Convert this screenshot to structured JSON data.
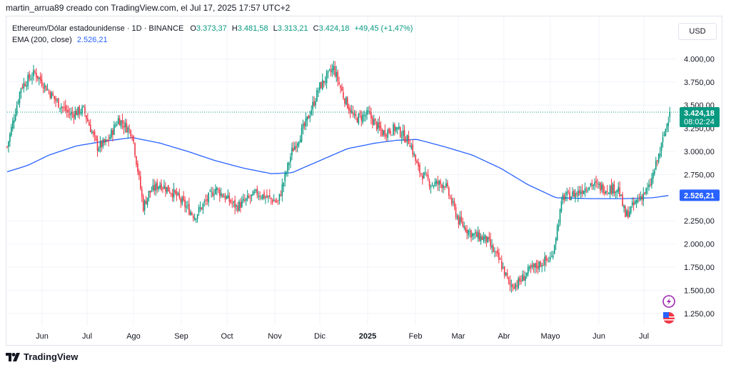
{
  "caption": "martin_arrua89 creado con TradingView.com, el Jul 17, 2025 17:57 UTC+2",
  "legend": {
    "symbol": "Ethereum/Dólar estadounidense · 1D · BINANCE",
    "o_label": "O",
    "o": "3.373,37",
    "h_label": "H",
    "h": "3.481,58",
    "l_label": "L",
    "l": "3.313,21",
    "c_label": "C",
    "c": "3.424,18",
    "change": "+49,45 (+1,47%)",
    "ema_label": "EMA (200, close)",
    "ema_value": "2.526,21"
  },
  "currency_button": "USD",
  "price_tag": {
    "price": "3.424,18",
    "countdown": "08:02:24",
    "color": "#089981"
  },
  "ema_tag": {
    "value": "2.526,21",
    "color": "#2962ff"
  },
  "footer_brand": "TradingView",
  "colors": {
    "up": "#089981",
    "down": "#f23645",
    "ema": "#2962ff",
    "grid": "#f0f3fa"
  },
  "icons": [
    "lightning-icon",
    "us-flag-icon"
  ],
  "chart_data": {
    "type": "candlestick",
    "title": "Ethereum/Dólar estadounidense · 1D · BINANCE",
    "xlabel": "",
    "ylabel": "",
    "ylim": [
      1000,
      4400
    ],
    "y_ticks": [
      {
        "v": 4000,
        "label": "4.000,00"
      },
      {
        "v": 3750,
        "label": "3.750,00"
      },
      {
        "v": 3500,
        "label": "3.500,00"
      },
      {
        "v": 3250,
        "label": "3.250,00"
      },
      {
        "v": 3000,
        "label": "3.000,00"
      },
      {
        "v": 2750,
        "label": "2.750,00"
      },
      {
        "v": 2250,
        "label": "2.250,00"
      },
      {
        "v": 2000,
        "label": "2.000,00"
      },
      {
        "v": 1750,
        "label": "1.750,00"
      },
      {
        "v": 1500,
        "label": "1.500,00"
      },
      {
        "v": 1250,
        "label": "1.250,00"
      }
    ],
    "x_ticks": [
      {
        "label": "Jun",
        "bold": false
      },
      {
        "label": "Jul",
        "bold": false
      },
      {
        "label": "Ago",
        "bold": false
      },
      {
        "label": "Sep",
        "bold": false
      },
      {
        "label": "Oct",
        "bold": false
      },
      {
        "label": "Nov",
        "bold": false
      },
      {
        "label": "Dic",
        "bold": false
      },
      {
        "label": "2025",
        "bold": true
      },
      {
        "label": "Feb",
        "bold": false
      },
      {
        "label": "Mar",
        "bold": false
      },
      {
        "label": "Abr",
        "bold": false
      },
      {
        "label": "Mayo",
        "bold": false
      },
      {
        "label": "Jun",
        "bold": false
      },
      {
        "label": "Jul",
        "bold": false
      }
    ],
    "close_anchors": [
      {
        "d": 0,
        "p": 3050
      },
      {
        "d": 10,
        "p": 3700
      },
      {
        "d": 20,
        "p": 3850
      },
      {
        "d": 35,
        "p": 3550
      },
      {
        "d": 45,
        "p": 3400
      },
      {
        "d": 55,
        "p": 3450
      },
      {
        "d": 65,
        "p": 3050
      },
      {
        "d": 72,
        "p": 3100
      },
      {
        "d": 80,
        "p": 3350
      },
      {
        "d": 90,
        "p": 3200
      },
      {
        "d": 98,
        "p": 2400
      },
      {
        "d": 102,
        "p": 2550
      },
      {
        "d": 110,
        "p": 2650
      },
      {
        "d": 120,
        "p": 2550
      },
      {
        "d": 135,
        "p": 2300
      },
      {
        "d": 150,
        "p": 2600
      },
      {
        "d": 165,
        "p": 2400
      },
      {
        "d": 180,
        "p": 2550
      },
      {
        "d": 195,
        "p": 2450
      },
      {
        "d": 205,
        "p": 3000
      },
      {
        "d": 215,
        "p": 3300
      },
      {
        "d": 225,
        "p": 3700
      },
      {
        "d": 235,
        "p": 3900
      },
      {
        "d": 242,
        "p": 3600
      },
      {
        "d": 250,
        "p": 3350
      },
      {
        "d": 260,
        "p": 3400
      },
      {
        "d": 270,
        "p": 3200
      },
      {
        "d": 280,
        "p": 3250
      },
      {
        "d": 290,
        "p": 3100
      },
      {
        "d": 296,
        "p": 2800
      },
      {
        "d": 305,
        "p": 2650
      },
      {
        "d": 315,
        "p": 2650
      },
      {
        "d": 325,
        "p": 2250
      },
      {
        "d": 335,
        "p": 2100
      },
      {
        "d": 345,
        "p": 2050
      },
      {
        "d": 355,
        "p": 1800
      },
      {
        "d": 362,
        "p": 1550
      },
      {
        "d": 368,
        "p": 1580
      },
      {
        "d": 375,
        "p": 1700
      },
      {
        "d": 385,
        "p": 1800
      },
      {
        "d": 392,
        "p": 1850
      },
      {
        "d": 400,
        "p": 2500
      },
      {
        "d": 410,
        "p": 2550
      },
      {
        "d": 420,
        "p": 2650
      },
      {
        "d": 430,
        "p": 2600
      },
      {
        "d": 440,
        "p": 2600
      },
      {
        "d": 445,
        "p": 2300
      },
      {
        "d": 455,
        "p": 2500
      },
      {
        "d": 462,
        "p": 2600
      },
      {
        "d": 470,
        "p": 3000
      },
      {
        "d": 477,
        "p": 3424
      }
    ],
    "ema200_anchors": [
      {
        "d": 0,
        "p": 2780
      },
      {
        "d": 15,
        "p": 2850
      },
      {
        "d": 30,
        "p": 2960
      },
      {
        "d": 50,
        "p": 3060
      },
      {
        "d": 70,
        "p": 3110
      },
      {
        "d": 90,
        "p": 3150
      },
      {
        "d": 110,
        "p": 3090
      },
      {
        "d": 130,
        "p": 3000
      },
      {
        "d": 150,
        "p": 2900
      },
      {
        "d": 170,
        "p": 2820
      },
      {
        "d": 190,
        "p": 2760
      },
      {
        "d": 205,
        "p": 2770
      },
      {
        "d": 225,
        "p": 2900
      },
      {
        "d": 245,
        "p": 3030
      },
      {
        "d": 265,
        "p": 3090
      },
      {
        "d": 280,
        "p": 3120
      },
      {
        "d": 295,
        "p": 3130
      },
      {
        "d": 315,
        "p": 3050
      },
      {
        "d": 335,
        "p": 2960
      },
      {
        "d": 355,
        "p": 2820
      },
      {
        "d": 375,
        "p": 2640
      },
      {
        "d": 395,
        "p": 2500
      },
      {
        "d": 420,
        "p": 2490
      },
      {
        "d": 445,
        "p": 2490
      },
      {
        "d": 465,
        "p": 2500
      },
      {
        "d": 477,
        "p": 2526
      }
    ]
  }
}
